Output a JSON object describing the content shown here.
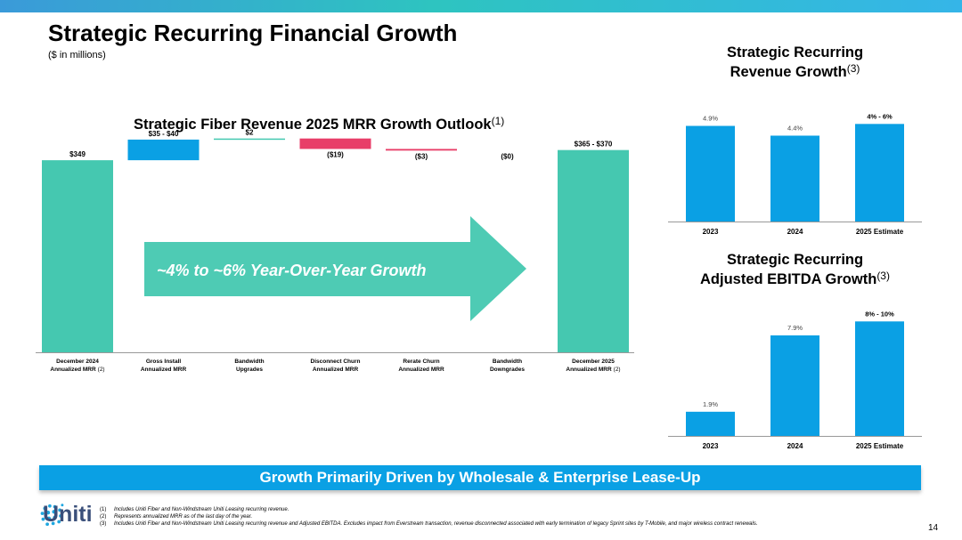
{
  "slide": {
    "title": "Strategic Recurring Financial Growth",
    "subtitle": "($ in millions)",
    "banner": "Growth Primarily Driven by Wholesale & Enterprise Lease-Up",
    "page_number": "14",
    "logo_text": "Uniti",
    "footnotes": [
      {
        "num": "(1)",
        "text": "Includes Uniti Fiber and Non-Windstream Uniti Leasing recurring revenue."
      },
      {
        "num": "(2)",
        "text": "Represents annualized MRR as of the last day of the year."
      },
      {
        "num": "(3)",
        "text": "Includes Uniti Fiber and Non-Windstream Uniti Leasing recurring revenue and Adjusted EBITDA.  Excludes impact from Everstream transaction, revenue disconnected associated with early termination of legacy Sprint sites by T-Mobile, and major wireless contract renewals."
      }
    ],
    "colors": {
      "teal": "#45c8b0",
      "blue": "#0aa0e4",
      "red": "#e83e68",
      "topbar": "#35b5e8",
      "arrow": "#45c8b0"
    }
  },
  "chart_data": [
    {
      "type": "waterfall",
      "title": "Strategic Fiber Revenue 2025 MRR Growth Outlook",
      "title_sup": "(1)",
      "growth_arrow_text": "~4% to ~6% Year-Over-Year Growth",
      "ylim": [
        0,
        430
      ],
      "categories": [
        {
          "line1": "December 2024",
          "line2": "Annualized  MRR",
          "sup": "(2)"
        },
        {
          "line1": "Gross Install",
          "line2": "Annualized  MRR",
          "sup": ""
        },
        {
          "line1": "Bandwidth",
          "line2": "Upgrades",
          "sup": ""
        },
        {
          "line1": "Disconnect Churn",
          "line2": "Annualized  MRR",
          "sup": ""
        },
        {
          "line1": "Rerate Churn",
          "line2": "Annualized  MRR",
          "sup": ""
        },
        {
          "line1": "Bandwidth",
          "line2": "Downgrades",
          "sup": ""
        },
        {
          "line1": "December 2025",
          "line2": "Annualized  MRR",
          "sup": "(2)"
        }
      ],
      "bars": [
        {
          "label": "$349",
          "kind": "total",
          "start": 0,
          "end": 349,
          "color": "#45c8b0"
        },
        {
          "label": "$35 - $40",
          "kind": "increase",
          "start": 349,
          "end": 386.5,
          "color": "#0aa0e4"
        },
        {
          "label": "$2",
          "kind": "increase",
          "start": 386.5,
          "end": 388.5,
          "color": "#45c8b0"
        },
        {
          "label": "($19)",
          "kind": "decrease",
          "start": 388.5,
          "end": 369.5,
          "color": "#e83e68"
        },
        {
          "label": "($3)",
          "kind": "decrease",
          "start": 369.5,
          "end": 366.5,
          "color": "#e83e68"
        },
        {
          "label": "($0)",
          "kind": "decrease",
          "start": 366.5,
          "end": 366.5,
          "color": "#e83e68"
        },
        {
          "label": "$365 - $370",
          "kind": "total",
          "start": 0,
          "end": 367.5,
          "color": "#45c8b0"
        }
      ]
    },
    {
      "type": "bar",
      "title_line1": "Strategic Recurring",
      "title_line2": "Revenue Growth",
      "title_sup": "(3)",
      "categories": [
        "2023",
        "2024",
        "2025 Estimate"
      ],
      "values": [
        4.9,
        4.4,
        5.0
      ],
      "value_labels": [
        "4.9%",
        "4.4%",
        "4% - 6%"
      ],
      "ylim": [
        0,
        6.2
      ],
      "color": "#0aa0e4"
    },
    {
      "type": "bar",
      "title_line1": "Strategic Recurring",
      "title_line2": "Adjusted EBITDA Growth",
      "title_sup": "(3)",
      "categories": [
        "2023",
        "2024",
        "2025 Estimate"
      ],
      "values": [
        1.9,
        7.9,
        9.0
      ],
      "value_labels": [
        "1.9%",
        "7.9%",
        "8% - 10%"
      ],
      "ylim": [
        0,
        10
      ],
      "color": "#0aa0e4"
    }
  ]
}
